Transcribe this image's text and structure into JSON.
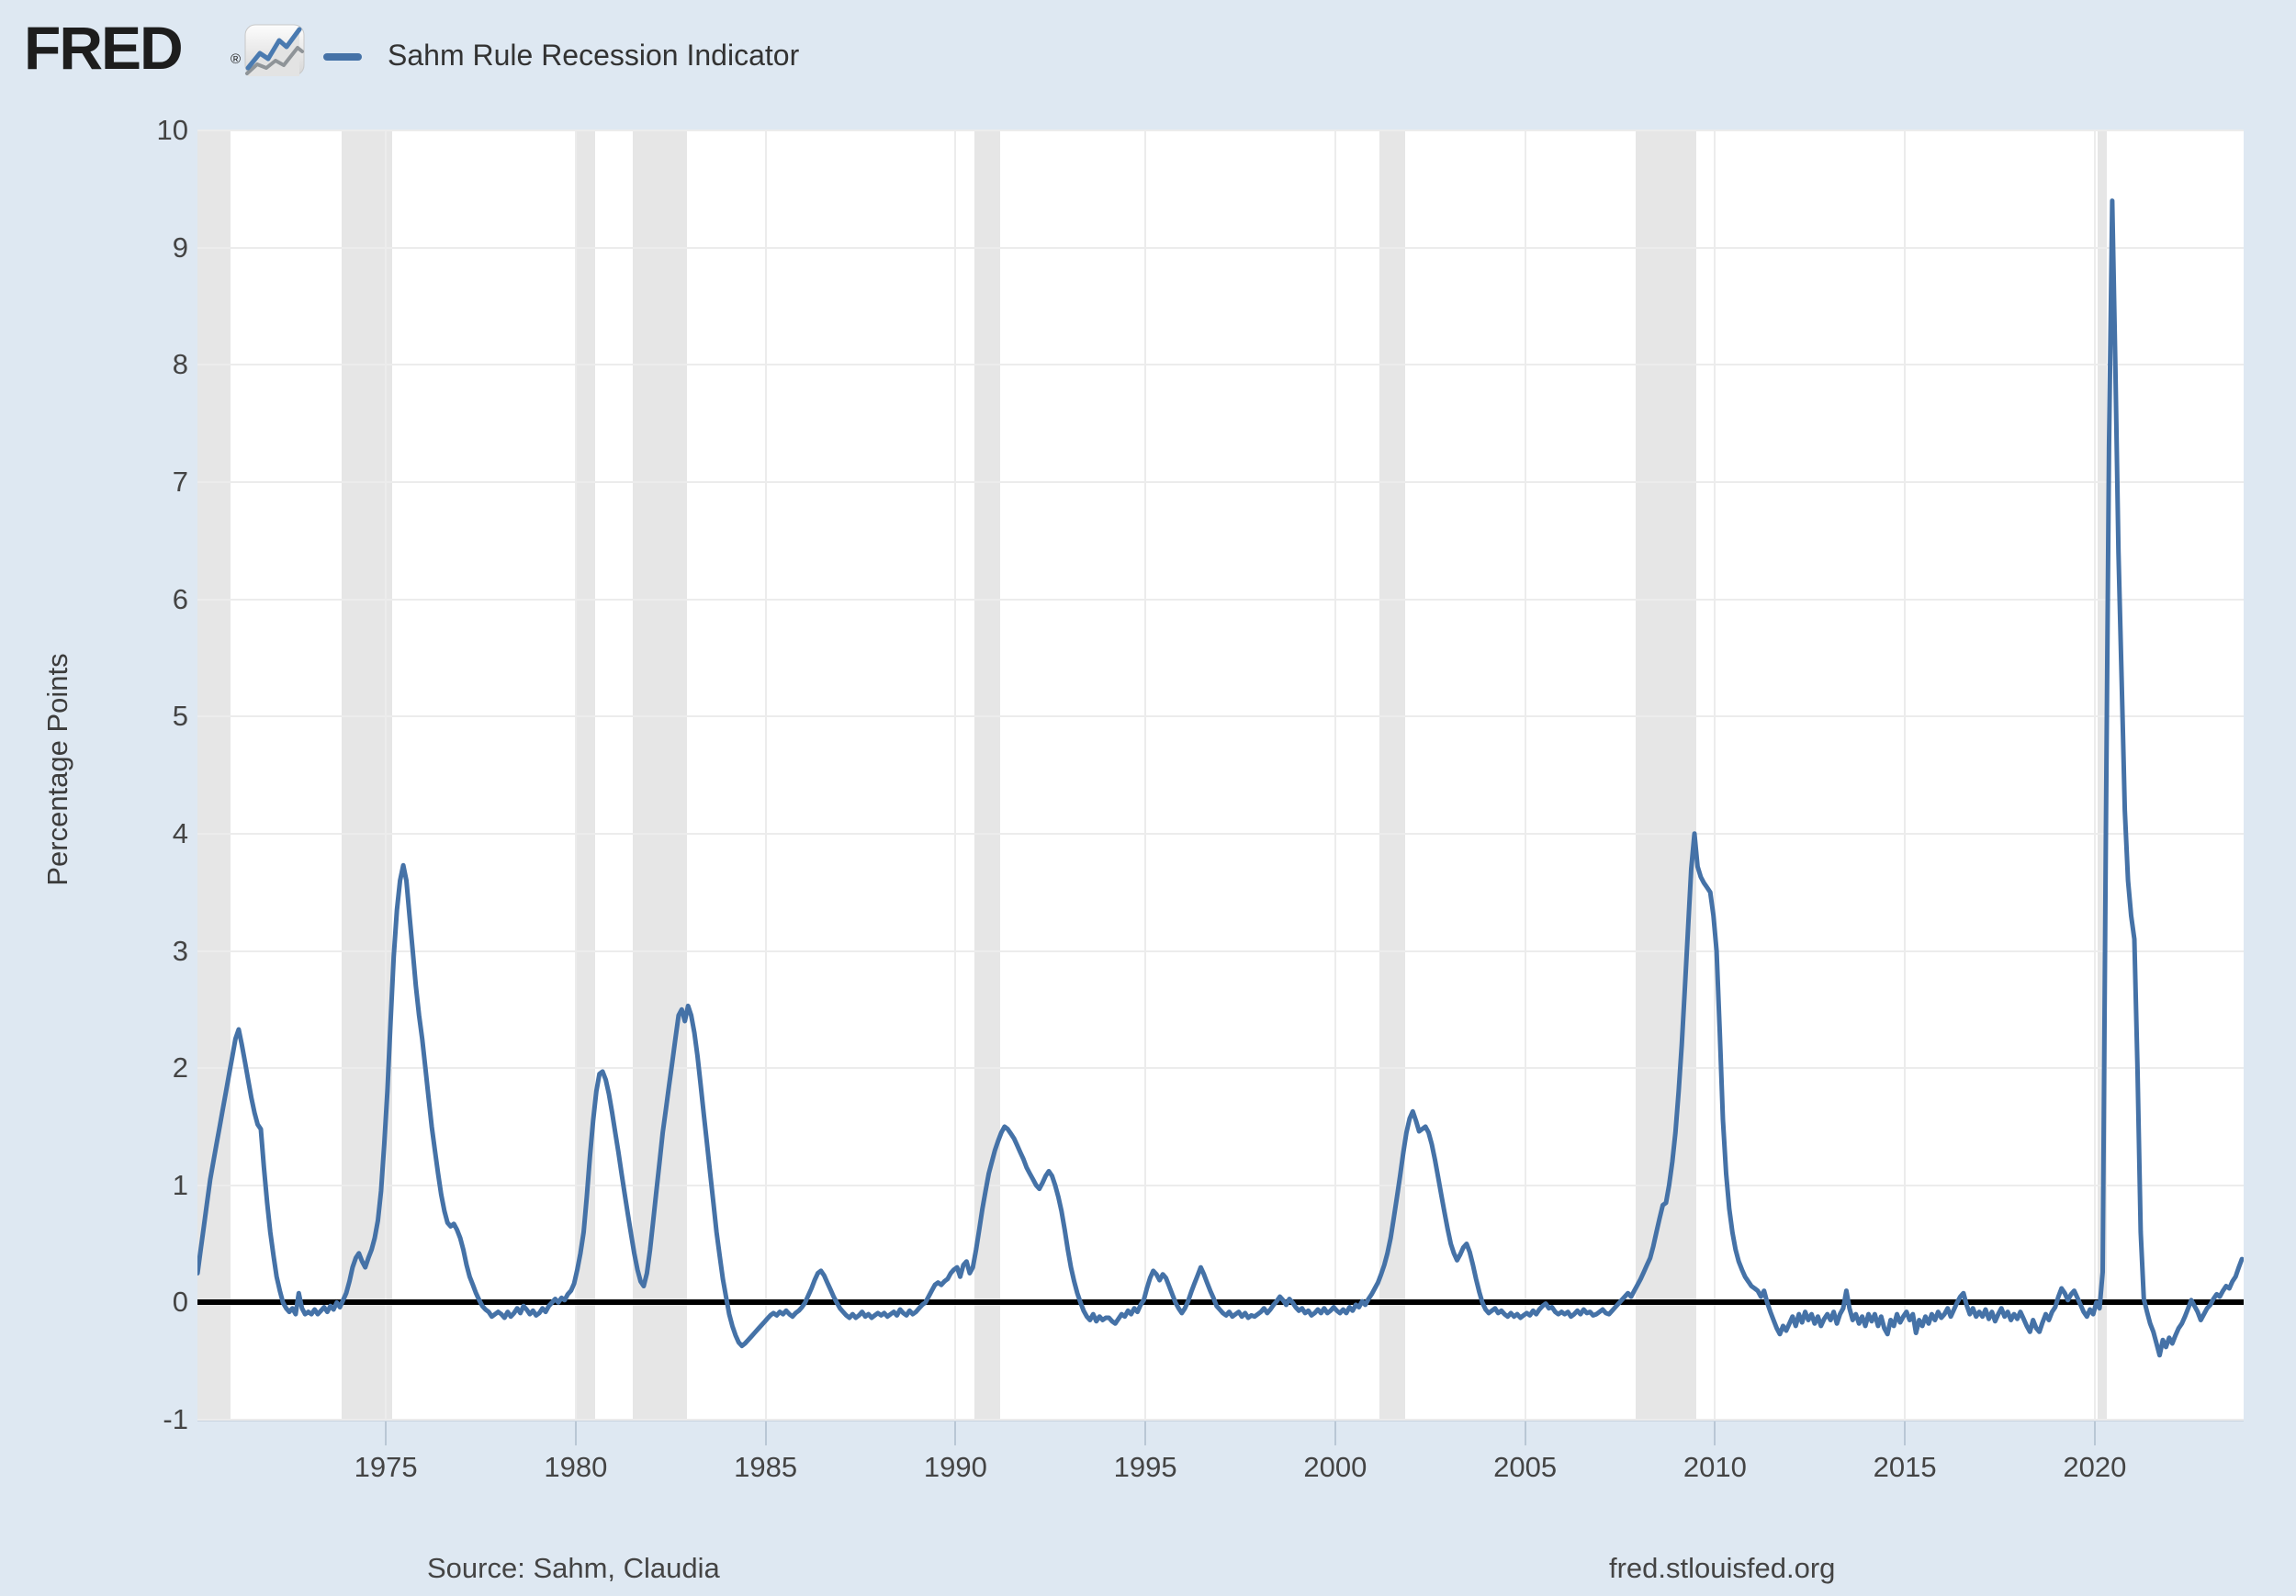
{
  "header": {
    "logo_text": "FRED",
    "registered_mark": "®",
    "legend_label": "Sahm Rule Recession Indicator"
  },
  "y_axis_title": "Percentage Points",
  "footer": {
    "source": "Source: Sahm, Claudia",
    "site": "fred.stlouisfed.org"
  },
  "colors": {
    "line": "#4572a7",
    "recession_band": "#e6e6e6",
    "background": "#dee8f2",
    "plot_background": "#ffffff",
    "zero_line": "#000000",
    "icon_blue": "#4a7ab0",
    "icon_gray": "#8f9498"
  },
  "chart_data": {
    "type": "line",
    "title": "Sahm Rule Recession Indicator",
    "xlabel": "",
    "ylabel": "Percentage Points",
    "xlim": [
      1970.04,
      2023.92
    ],
    "ylim": [
      -1,
      10
    ],
    "x_ticks": [
      1975,
      1980,
      1985,
      1990,
      1995,
      2000,
      2005,
      2010,
      2015,
      2020
    ],
    "y_ticks": [
      10,
      9,
      8,
      7,
      6,
      5,
      4,
      3,
      2,
      1,
      0,
      -1
    ],
    "grid": true,
    "legend_position": "top-left",
    "zero_line": 0,
    "recession_bands": [
      [
        1970.04,
        1970.92
      ],
      [
        1973.83,
        1975.17
      ],
      [
        1980.0,
        1980.5
      ],
      [
        1981.5,
        1982.92
      ],
      [
        1990.5,
        1991.17
      ],
      [
        2001.17,
        2001.83
      ],
      [
        2007.92,
        2009.5
      ],
      [
        2020.08,
        2020.33
      ]
    ],
    "series": [
      {
        "name": "Sahm Rule Recession Indicator",
        "color": "#4572a7",
        "frequency": "monthly",
        "start_year": 1970,
        "start_month": 1,
        "values": [
          0.25,
          0.45,
          0.65,
          0.85,
          1.05,
          1.2,
          1.35,
          1.5,
          1.65,
          1.8,
          1.95,
          2.1,
          2.25,
          2.33,
          2.2,
          2.05,
          1.9,
          1.75,
          1.62,
          1.52,
          1.48,
          1.15,
          0.85,
          0.6,
          0.4,
          0.22,
          0.1,
          0.0,
          -0.05,
          -0.08,
          -0.05,
          -0.1,
          0.08,
          -0.05,
          -0.1,
          -0.08,
          -0.1,
          -0.06,
          -0.1,
          -0.07,
          -0.04,
          -0.08,
          -0.03,
          -0.06,
          0.0,
          -0.04,
          0.02,
          0.08,
          0.18,
          0.3,
          0.38,
          0.42,
          0.35,
          0.3,
          0.38,
          0.45,
          0.55,
          0.7,
          0.95,
          1.35,
          1.8,
          2.4,
          2.95,
          3.35,
          3.6,
          3.73,
          3.6,
          3.3,
          3.0,
          2.7,
          2.45,
          2.25,
          2.0,
          1.75,
          1.5,
          1.3,
          1.1,
          0.92,
          0.78,
          0.68,
          0.65,
          0.67,
          0.62,
          0.55,
          0.45,
          0.32,
          0.22,
          0.15,
          0.08,
          0.02,
          -0.03,
          -0.06,
          -0.08,
          -0.12,
          -0.1,
          -0.08,
          -0.1,
          -0.13,
          -0.08,
          -0.12,
          -0.09,
          -0.05,
          -0.09,
          -0.03,
          -0.06,
          -0.1,
          -0.07,
          -0.11,
          -0.09,
          -0.05,
          -0.08,
          -0.03,
          0.0,
          0.03,
          0.0,
          0.04,
          0.02,
          0.07,
          0.1,
          0.16,
          0.28,
          0.42,
          0.6,
          0.9,
          1.25,
          1.55,
          1.8,
          1.95,
          1.97,
          1.9,
          1.78,
          1.62,
          1.45,
          1.28,
          1.1,
          0.92,
          0.75,
          0.58,
          0.42,
          0.28,
          0.18,
          0.14,
          0.25,
          0.45,
          0.7,
          0.95,
          1.2,
          1.45,
          1.65,
          1.85,
          2.05,
          2.25,
          2.45,
          2.5,
          2.4,
          2.53,
          2.45,
          2.3,
          2.1,
          1.85,
          1.6,
          1.35,
          1.1,
          0.85,
          0.6,
          0.4,
          0.2,
          0.05,
          -0.1,
          -0.2,
          -0.28,
          -0.34,
          -0.37,
          -0.35,
          -0.32,
          -0.29,
          -0.26,
          -0.23,
          -0.2,
          -0.17,
          -0.14,
          -0.11,
          -0.09,
          -0.11,
          -0.08,
          -0.1,
          -0.07,
          -0.1,
          -0.12,
          -0.09,
          -0.07,
          -0.04,
          0.0,
          0.06,
          0.12,
          0.19,
          0.25,
          0.27,
          0.23,
          0.17,
          0.11,
          0.05,
          0.0,
          -0.05,
          -0.08,
          -0.11,
          -0.13,
          -0.1,
          -0.13,
          -0.11,
          -0.08,
          -0.12,
          -0.1,
          -0.13,
          -0.11,
          -0.09,
          -0.11,
          -0.09,
          -0.12,
          -0.1,
          -0.08,
          -0.11,
          -0.06,
          -0.09,
          -0.11,
          -0.07,
          -0.1,
          -0.08,
          -0.05,
          -0.02,
          0.0,
          0.05,
          0.1,
          0.15,
          0.17,
          0.15,
          0.18,
          0.2,
          0.25,
          0.28,
          0.3,
          0.22,
          0.32,
          0.35,
          0.25,
          0.3,
          0.45,
          0.62,
          0.8,
          0.95,
          1.1,
          1.2,
          1.3,
          1.38,
          1.45,
          1.5,
          1.48,
          1.44,
          1.4,
          1.34,
          1.28,
          1.22,
          1.15,
          1.1,
          1.05,
          1.0,
          0.97,
          1.02,
          1.08,
          1.12,
          1.08,
          1.0,
          0.9,
          0.78,
          0.62,
          0.45,
          0.3,
          0.18,
          0.08,
          0.0,
          -0.07,
          -0.12,
          -0.15,
          -0.1,
          -0.16,
          -0.12,
          -0.15,
          -0.13,
          -0.13,
          -0.16,
          -0.18,
          -0.14,
          -0.1,
          -0.12,
          -0.07,
          -0.1,
          -0.05,
          -0.08,
          -0.02,
          0.02,
          0.12,
          0.21,
          0.27,
          0.24,
          0.19,
          0.24,
          0.21,
          0.14,
          0.07,
          0.0,
          -0.05,
          -0.09,
          -0.05,
          0.01,
          0.09,
          0.16,
          0.23,
          0.3,
          0.24,
          0.17,
          0.1,
          0.04,
          -0.03,
          -0.06,
          -0.09,
          -0.11,
          -0.08,
          -0.12,
          -0.1,
          -0.08,
          -0.12,
          -0.09,
          -0.13,
          -0.11,
          -0.12,
          -0.1,
          -0.08,
          -0.05,
          -0.09,
          -0.06,
          -0.02,
          0.01,
          0.05,
          0.02,
          -0.02,
          0.03,
          0.0,
          -0.04,
          -0.07,
          -0.05,
          -0.09,
          -0.07,
          -0.11,
          -0.09,
          -0.06,
          -0.09,
          -0.05,
          -0.09,
          -0.07,
          -0.04,
          -0.07,
          -0.09,
          -0.06,
          -0.09,
          -0.04,
          -0.07,
          -0.02,
          -0.04,
          0.01,
          -0.02,
          0.03,
          0.07,
          0.12,
          0.17,
          0.24,
          0.32,
          0.42,
          0.55,
          0.72,
          0.9,
          1.08,
          1.28,
          1.45,
          1.57,
          1.63,
          1.55,
          1.46,
          1.48,
          1.5,
          1.45,
          1.35,
          1.22,
          1.07,
          0.92,
          0.77,
          0.63,
          0.5,
          0.42,
          0.36,
          0.41,
          0.47,
          0.5,
          0.43,
          0.32,
          0.2,
          0.09,
          0.0,
          -0.06,
          -0.09,
          -0.07,
          -0.05,
          -0.09,
          -0.07,
          -0.1,
          -0.12,
          -0.09,
          -0.12,
          -0.1,
          -0.13,
          -0.11,
          -0.09,
          -0.11,
          -0.07,
          -0.1,
          -0.06,
          -0.03,
          -0.01,
          -0.05,
          -0.04,
          -0.08,
          -0.1,
          -0.08,
          -0.1,
          -0.08,
          -0.12,
          -0.1,
          -0.07,
          -0.1,
          -0.06,
          -0.09,
          -0.08,
          -0.11,
          -0.1,
          -0.08,
          -0.06,
          -0.09,
          -0.1,
          -0.07,
          -0.04,
          -0.01,
          0.02,
          0.05,
          0.08,
          0.05,
          0.1,
          0.15,
          0.2,
          0.26,
          0.32,
          0.38,
          0.48,
          0.6,
          0.72,
          0.83,
          0.85,
          1.0,
          1.2,
          1.45,
          1.8,
          2.2,
          2.7,
          3.2,
          3.7,
          4.0,
          3.72,
          3.63,
          3.58,
          3.54,
          3.5,
          3.3,
          3.0,
          2.3,
          1.56,
          1.1,
          0.8,
          0.6,
          0.45,
          0.35,
          0.28,
          0.22,
          0.18,
          0.14,
          0.12,
          0.1,
          0.05,
          0.1,
          0.0,
          -0.08,
          -0.15,
          -0.22,
          -0.27,
          -0.2,
          -0.24,
          -0.18,
          -0.12,
          -0.2,
          -0.1,
          -0.17,
          -0.08,
          -0.15,
          -0.1,
          -0.18,
          -0.12,
          -0.2,
          -0.14,
          -0.1,
          -0.15,
          -0.08,
          -0.18,
          -0.1,
          -0.05,
          0.1,
          -0.05,
          -0.15,
          -0.1,
          -0.18,
          -0.12,
          -0.2,
          -0.1,
          -0.16,
          -0.1,
          -0.2,
          -0.12,
          -0.22,
          -0.27,
          -0.15,
          -0.2,
          -0.1,
          -0.17,
          -0.12,
          -0.08,
          -0.15,
          -0.1,
          -0.26,
          -0.15,
          -0.2,
          -0.12,
          -0.18,
          -0.1,
          -0.15,
          -0.08,
          -0.13,
          -0.1,
          -0.05,
          -0.12,
          -0.06,
          0.0,
          0.05,
          0.08,
          -0.02,
          -0.1,
          -0.05,
          -0.12,
          -0.08,
          -0.12,
          -0.06,
          -0.14,
          -0.08,
          -0.16,
          -0.1,
          -0.05,
          -0.12,
          -0.08,
          -0.15,
          -0.1,
          -0.14,
          -0.08,
          -0.14,
          -0.2,
          -0.25,
          -0.15,
          -0.22,
          -0.25,
          -0.17,
          -0.1,
          -0.15,
          -0.08,
          -0.04,
          0.05,
          0.12,
          0.08,
          0.02,
          0.07,
          0.1,
          0.04,
          -0.02,
          -0.08,
          -0.12,
          -0.06,
          -0.1,
          0.0,
          -0.05,
          0.26,
          4.0,
          7.3,
          9.4,
          8.0,
          6.4,
          5.3,
          4.2,
          3.6,
          3.3,
          3.1,
          2.0,
          0.6,
          0.03,
          -0.08,
          -0.18,
          -0.25,
          -0.35,
          -0.45,
          -0.32,
          -0.38,
          -0.3,
          -0.35,
          -0.28,
          -0.22,
          -0.18,
          -0.12,
          -0.05,
          0.02,
          -0.03,
          -0.08,
          -0.15,
          -0.1,
          -0.05,
          -0.02,
          0.03,
          0.07,
          0.05,
          0.1,
          0.14,
          0.12,
          0.18,
          0.22,
          0.3,
          0.37
        ]
      }
    ]
  }
}
